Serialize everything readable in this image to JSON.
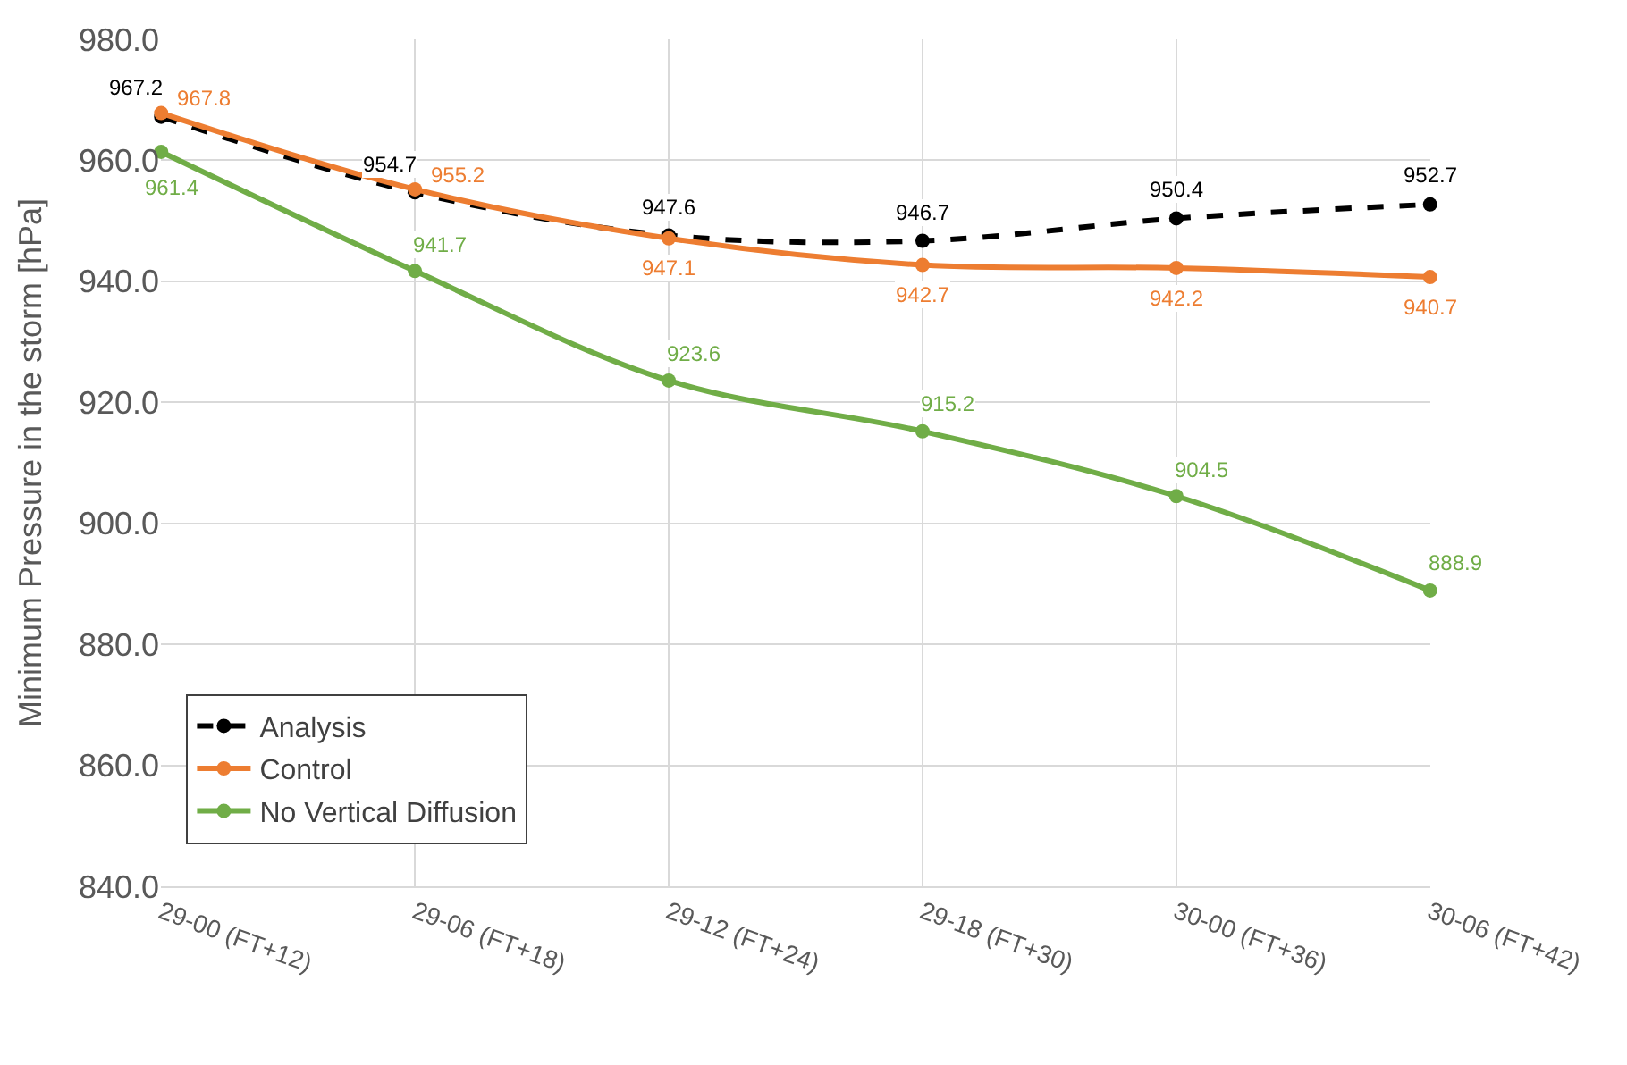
{
  "chart_data": {
    "type": "line",
    "ylabel": "Minimum Pressure in the storm [hPa]",
    "categories": [
      "29-00 (FT+12)",
      "29-06 (FT+18)",
      "29-12 (FT+24)",
      "29-18 (FT+30)",
      "30-00 (FT+36)",
      "30-06 (FT+42)"
    ],
    "series": [
      {
        "name": "Analysis",
        "color": "#000000",
        "line_style": "dashed",
        "values": [
          967.2,
          954.7,
          947.6,
          946.7,
          950.4,
          952.7
        ]
      },
      {
        "name": "Control",
        "color": "#ed7d31",
        "line_style": "solid",
        "values": [
          967.8,
          955.2,
          947.1,
          942.7,
          942.2,
          940.7
        ]
      },
      {
        "name": "No Vertical Diffusion",
        "color": "#70ad47",
        "line_style": "solid",
        "values": [
          961.4,
          941.7,
          923.6,
          915.2,
          904.5,
          888.9
        ]
      }
    ],
    "ylim": [
      840,
      980
    ],
    "yticks": [
      {
        "value": 840,
        "label": "840.0"
      },
      {
        "value": 860,
        "label": "860.0"
      },
      {
        "value": 880,
        "label": "880.0"
      },
      {
        "value": 900,
        "label": "900.0"
      },
      {
        "value": 920,
        "label": "920.0"
      },
      {
        "value": 940,
        "label": "940.0"
      },
      {
        "value": 960,
        "label": "960.0"
      },
      {
        "value": 980,
        "label": "980.0"
      }
    ],
    "grid": true,
    "legend": "bottom left",
    "marker": "circle",
    "data_labels": true
  }
}
